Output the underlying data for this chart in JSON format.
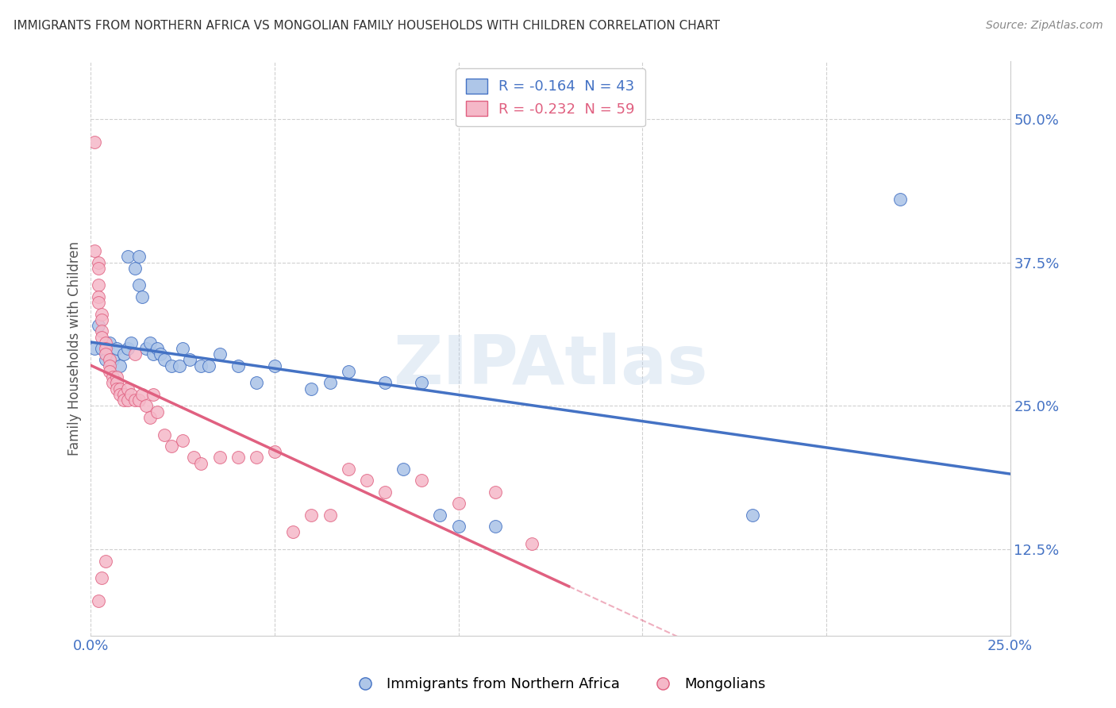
{
  "title": "IMMIGRANTS FROM NORTHERN AFRICA VS MONGOLIAN FAMILY HOUSEHOLDS WITH CHILDREN CORRELATION CHART",
  "source": "Source: ZipAtlas.com",
  "ylabel": "Family Households with Children",
  "xlim": [
    0.0,
    0.25
  ],
  "ylim": [
    0.05,
    0.55
  ],
  "xticks": [
    0.0,
    0.05,
    0.1,
    0.15,
    0.2,
    0.25
  ],
  "xticklabels": [
    "0.0%",
    "",
    "",
    "",
    "",
    "25.0%"
  ],
  "yticks": [
    0.125,
    0.25,
    0.375,
    0.5
  ],
  "yticklabels": [
    "12.5%",
    "25.0%",
    "37.5%",
    "50.0%"
  ],
  "blue_R": -0.164,
  "blue_N": 43,
  "pink_R": -0.232,
  "pink_N": 59,
  "blue_color": "#aec6e8",
  "pink_color": "#f5b8c8",
  "blue_line_color": "#4472c4",
  "pink_line_color": "#e06080",
  "blue_scatter": [
    [
      0.001,
      0.3
    ],
    [
      0.002,
      0.32
    ],
    [
      0.003,
      0.3
    ],
    [
      0.004,
      0.29
    ],
    [
      0.005,
      0.305
    ],
    [
      0.006,
      0.29
    ],
    [
      0.007,
      0.3
    ],
    [
      0.008,
      0.285
    ],
    [
      0.009,
      0.295
    ],
    [
      0.01,
      0.3
    ],
    [
      0.01,
      0.38
    ],
    [
      0.011,
      0.305
    ],
    [
      0.012,
      0.37
    ],
    [
      0.013,
      0.38
    ],
    [
      0.013,
      0.355
    ],
    [
      0.014,
      0.345
    ],
    [
      0.015,
      0.3
    ],
    [
      0.016,
      0.305
    ],
    [
      0.017,
      0.295
    ],
    [
      0.018,
      0.3
    ],
    [
      0.019,
      0.295
    ],
    [
      0.02,
      0.29
    ],
    [
      0.022,
      0.285
    ],
    [
      0.024,
      0.285
    ],
    [
      0.025,
      0.3
    ],
    [
      0.027,
      0.29
    ],
    [
      0.03,
      0.285
    ],
    [
      0.032,
      0.285
    ],
    [
      0.035,
      0.295
    ],
    [
      0.04,
      0.285
    ],
    [
      0.045,
      0.27
    ],
    [
      0.05,
      0.285
    ],
    [
      0.06,
      0.265
    ],
    [
      0.065,
      0.27
    ],
    [
      0.07,
      0.28
    ],
    [
      0.08,
      0.27
    ],
    [
      0.085,
      0.195
    ],
    [
      0.09,
      0.27
    ],
    [
      0.095,
      0.155
    ],
    [
      0.1,
      0.145
    ],
    [
      0.11,
      0.145
    ],
    [
      0.18,
      0.155
    ],
    [
      0.22,
      0.43
    ]
  ],
  "pink_scatter": [
    [
      0.001,
      0.48
    ],
    [
      0.001,
      0.385
    ],
    [
      0.002,
      0.375
    ],
    [
      0.002,
      0.37
    ],
    [
      0.002,
      0.355
    ],
    [
      0.002,
      0.345
    ],
    [
      0.002,
      0.34
    ],
    [
      0.003,
      0.33
    ],
    [
      0.003,
      0.325
    ],
    [
      0.003,
      0.315
    ],
    [
      0.003,
      0.31
    ],
    [
      0.004,
      0.305
    ],
    [
      0.004,
      0.3
    ],
    [
      0.004,
      0.295
    ],
    [
      0.005,
      0.29
    ],
    [
      0.005,
      0.285
    ],
    [
      0.005,
      0.28
    ],
    [
      0.006,
      0.275
    ],
    [
      0.006,
      0.27
    ],
    [
      0.007,
      0.275
    ],
    [
      0.007,
      0.27
    ],
    [
      0.007,
      0.265
    ],
    [
      0.008,
      0.265
    ],
    [
      0.008,
      0.26
    ],
    [
      0.009,
      0.26
    ],
    [
      0.009,
      0.255
    ],
    [
      0.01,
      0.265
    ],
    [
      0.01,
      0.255
    ],
    [
      0.011,
      0.26
    ],
    [
      0.012,
      0.295
    ],
    [
      0.012,
      0.255
    ],
    [
      0.013,
      0.255
    ],
    [
      0.014,
      0.26
    ],
    [
      0.015,
      0.25
    ],
    [
      0.016,
      0.24
    ],
    [
      0.017,
      0.26
    ],
    [
      0.018,
      0.245
    ],
    [
      0.02,
      0.225
    ],
    [
      0.022,
      0.215
    ],
    [
      0.025,
      0.22
    ],
    [
      0.028,
      0.205
    ],
    [
      0.03,
      0.2
    ],
    [
      0.035,
      0.205
    ],
    [
      0.04,
      0.205
    ],
    [
      0.045,
      0.205
    ],
    [
      0.05,
      0.21
    ],
    [
      0.055,
      0.14
    ],
    [
      0.06,
      0.155
    ],
    [
      0.065,
      0.155
    ],
    [
      0.07,
      0.195
    ],
    [
      0.075,
      0.185
    ],
    [
      0.08,
      0.175
    ],
    [
      0.09,
      0.185
    ],
    [
      0.1,
      0.165
    ],
    [
      0.11,
      0.175
    ],
    [
      0.12,
      0.13
    ],
    [
      0.002,
      0.08
    ],
    [
      0.003,
      0.1
    ],
    [
      0.004,
      0.115
    ]
  ],
  "legend_labels": [
    "Immigrants from Northern Africa",
    "Mongolians"
  ],
  "watermark": "ZIPAtlas",
  "background_color": "#ffffff",
  "grid_color": "#d0d0d0"
}
